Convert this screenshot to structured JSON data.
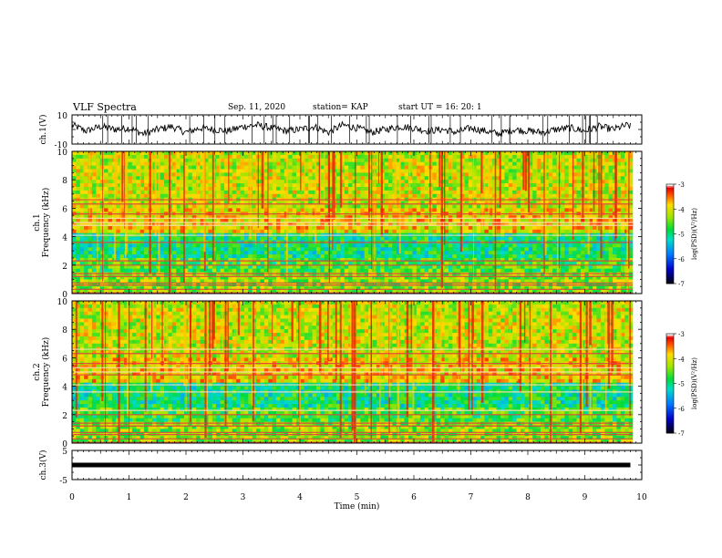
{
  "header": {
    "title": "VLF Spectra",
    "date": "Sep. 11, 2020",
    "station": "station= KAP",
    "start": "start  UT =   16: 20: 1"
  },
  "chart_data": [
    {
      "type": "line",
      "ylabel": "ch.1(V)",
      "ylim": [
        -10,
        10
      ],
      "yticks": [
        "10",
        "-10"
      ],
      "xlim": [
        0,
        10
      ],
      "series": [
        {
          "x": [
            0,
            0.25,
            0.5,
            0.75,
            1.0,
            1.25,
            1.5,
            1.75,
            2.0,
            2.25,
            2.5,
            2.75,
            3.0,
            3.25,
            3.5,
            3.75,
            4.0,
            4.25,
            4.5,
            4.75,
            5.0,
            5.25,
            5.5,
            5.75,
            6.0,
            6.25,
            6.5,
            6.75,
            7.0,
            7.25,
            7.5,
            7.75,
            8.0,
            8.25,
            8.5,
            8.75,
            9.0,
            9.25,
            9.5,
            9.75,
            9.8
          ],
          "values": [
            3,
            -1,
            2,
            0,
            1,
            -3,
            0,
            2,
            -2,
            1,
            0,
            -1,
            2,
            3,
            1,
            -1,
            0,
            2,
            -2,
            3,
            1,
            -2,
            0,
            2,
            1,
            -1,
            0,
            -2,
            1,
            -1,
            -3,
            0,
            -1,
            -2,
            0,
            1,
            -1,
            2,
            0,
            3,
            2
          ]
        }
      ]
    },
    {
      "type": "heatmap",
      "ylabel": "ch.1\nFrequency (kHz)",
      "xlim": [
        0,
        10
      ],
      "ylim": [
        0,
        10
      ],
      "yticks": [
        "0",
        "2",
        "4",
        "6",
        "8",
        "10"
      ],
      "colorbar": {
        "label": "log(PSD)(V²/Hz)",
        "range": [
          -7,
          -3
        ],
        "ticks": [
          "-3",
          "-4",
          "-5",
          "-6",
          "-7"
        ]
      }
    },
    {
      "type": "heatmap",
      "ylabel": "ch.2\nFrequency (kHz)",
      "xlim": [
        0,
        10
      ],
      "ylim": [
        0,
        10
      ],
      "yticks": [
        "0",
        "2",
        "4",
        "6",
        "8",
        "10"
      ],
      "colorbar": {
        "label": "log(PSD)(V²/Hz)",
        "range": [
          -7,
          -3
        ],
        "ticks": [
          "-3",
          "-4",
          "-5",
          "-6",
          "-7"
        ]
      }
    },
    {
      "type": "line",
      "ylabel": "ch.3(V)",
      "ylim": [
        -5,
        5
      ],
      "yticks": [
        "5",
        "-5"
      ],
      "xlim": [
        0,
        10
      ],
      "xlabel": "Time (min)",
      "xticks": [
        "0",
        "1",
        "2",
        "3",
        "4",
        "5",
        "6",
        "7",
        "8",
        "9",
        "10"
      ],
      "series": [
        {
          "x": [
            0,
            9.8
          ],
          "values": [
            0,
            0
          ]
        }
      ]
    }
  ]
}
